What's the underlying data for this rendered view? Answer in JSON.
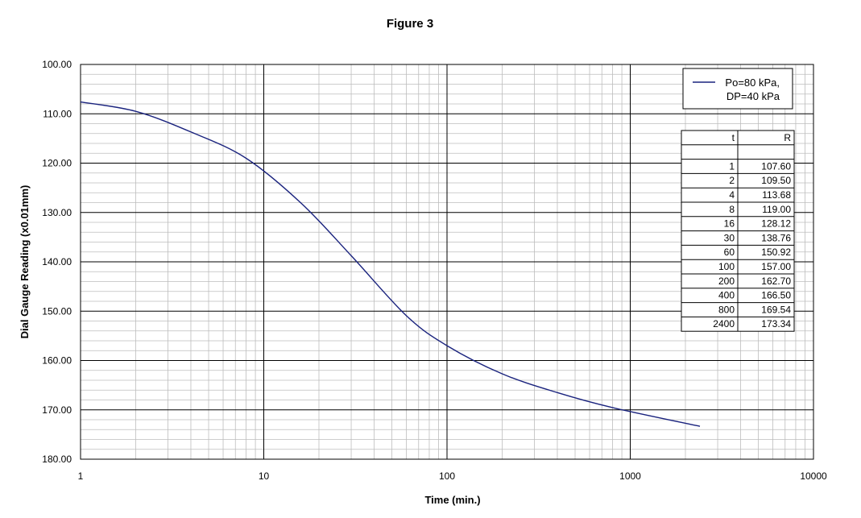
{
  "chart_data": {
    "type": "line",
    "title": "Figure 3",
    "xlabel": "Time (min.)",
    "ylabel": "Dial Gauge Reading (x0.01mm)",
    "xscale": "log",
    "xlim": [
      1,
      10000
    ],
    "ylim": [
      100,
      180
    ],
    "y_inverted": true,
    "x_ticks": [
      "1",
      "10",
      "100",
      "1000",
      "10000"
    ],
    "y_ticks": [
      "100.00",
      "110.00",
      "120.00",
      "130.00",
      "140.00",
      "150.00",
      "160.00",
      "170.00",
      "180.00"
    ],
    "grid": true,
    "legend_position": "top-right",
    "series": [
      {
        "name": "Po=80 kPa,\nDP=40 kPa",
        "legend_lines": [
          "Po=80 kPa,",
          "DP=40 kPa"
        ],
        "color": "#1a237e",
        "x": [
          1,
          2,
          4,
          8,
          16,
          30,
          60,
          100,
          200,
          400,
          800,
          2400
        ],
        "y": [
          107.6,
          109.5,
          113.68,
          119.0,
          128.12,
          138.76,
          150.92,
          157.0,
          162.7,
          166.5,
          169.54,
          173.34
        ]
      }
    ],
    "table": {
      "headers": [
        "t",
        "R"
      ],
      "rows": [
        [
          "1",
          "107.60"
        ],
        [
          "2",
          "109.50"
        ],
        [
          "4",
          "113.68"
        ],
        [
          "8",
          "119.00"
        ],
        [
          "16",
          "128.12"
        ],
        [
          "30",
          "138.76"
        ],
        [
          "60",
          "150.92"
        ],
        [
          "100",
          "157.00"
        ],
        [
          "200",
          "162.70"
        ],
        [
          "400",
          "166.50"
        ],
        [
          "800",
          "169.54"
        ],
        [
          "2400",
          "173.34"
        ]
      ]
    }
  }
}
